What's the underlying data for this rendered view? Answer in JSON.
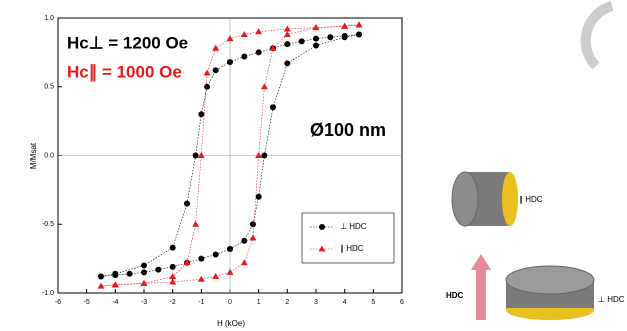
{
  "chart_data": {
    "type": "scatter",
    "x_label": "H (kOe)",
    "y_label": "M/Msat",
    "xlim": [
      -6,
      6
    ],
    "xticks": [
      -6,
      -5,
      -4,
      -3,
      -2,
      -1,
      0,
      1,
      2,
      3,
      4,
      5,
      6
    ],
    "ylim": [
      -1,
      1
    ],
    "yticks": [
      {
        "value": -1,
        "label": "-1.0"
      },
      -0.5,
      {
        "value": 0,
        "label": "0.0"
      },
      0.5,
      {
        "value": 1,
        "label": "1.0"
      }
    ],
    "legend": "lower right",
    "annotations": [
      "Hc⊥ = 1200 Oe",
      "Hc∥ = 1000 Oe",
      "Ø100 nm"
    ],
    "annotation_colors": [
      "#000000",
      "#e8191c",
      "#000000"
    ],
    "series": [
      {
        "name": "⊥ HDC",
        "color": "#000000",
        "marker": "circle",
        "x": [
          4.5,
          4,
          3.5,
          3,
          2.5,
          2,
          1.5,
          1,
          0.5,
          0,
          -0.5,
          -0.8,
          -1,
          -1.2,
          -1.5,
          -2,
          -3,
          -4,
          -4.5,
          -4,
          -3.5,
          -3,
          -2.5,
          -2,
          -1.5,
          -1,
          -0.5,
          0,
          0.5,
          0.8,
          1,
          1.2,
          1.5,
          2,
          3,
          4,
          4.5
        ],
        "values": [
          0.88,
          0.87,
          0.86,
          0.85,
          0.83,
          0.81,
          0.78,
          0.75,
          0.72,
          0.68,
          0.62,
          0.5,
          0.3,
          0,
          -0.35,
          -0.67,
          -0.8,
          -0.86,
          -0.88,
          -0.87,
          -0.86,
          -0.85,
          -0.83,
          -0.81,
          -0.78,
          -0.75,
          -0.72,
          -0.68,
          -0.62,
          -0.5,
          -0.3,
          0,
          0.35,
          0.67,
          0.8,
          0.86,
          0.88
        ]
      },
      {
        "name": "∥ HDC",
        "color": "#e8191c",
        "marker": "triangle",
        "x": [
          4.5,
          4,
          3,
          2,
          1,
          0.5,
          0,
          -0.5,
          -0.8,
          -1,
          -1.2,
          -1.5,
          -2,
          -3,
          -4,
          -4.5,
          -4,
          -3,
          -2,
          -1,
          -0.5,
          0,
          0.5,
          0.8,
          1,
          1.2,
          1.5,
          2,
          3,
          4,
          4.5
        ],
        "values": [
          0.95,
          0.94,
          0.93,
          0.92,
          0.9,
          0.88,
          0.85,
          0.78,
          0.6,
          0,
          -0.5,
          -0.78,
          -0.88,
          -0.93,
          -0.94,
          -0.95,
          -0.94,
          -0.93,
          -0.92,
          -0.9,
          -0.88,
          -0.85,
          -0.78,
          -0.6,
          0,
          0.5,
          0.78,
          0.88,
          0.93,
          0.94,
          0.95
        ]
      }
    ]
  },
  "diagram": {
    "labels": [
      "∥ HDC",
      "⊥ HDC",
      "HDC"
    ]
  }
}
